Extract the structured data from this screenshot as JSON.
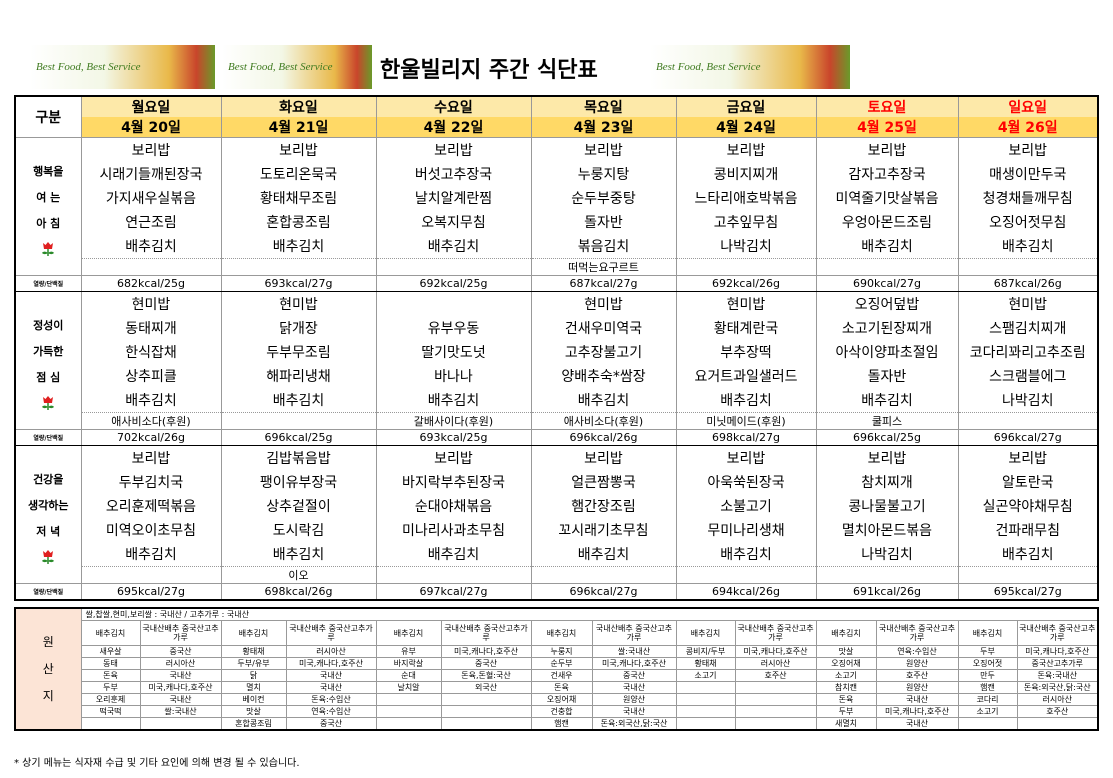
{
  "banner": "Best Food, Best Service",
  "title": "한울빌리지 주간 식단표",
  "header": {
    "label": "구분",
    "days": [
      "월요일",
      "화요일",
      "수요일",
      "목요일",
      "금요일",
      "토요일",
      "일요일"
    ],
    "dates": [
      "4월 20일",
      "4월 21일",
      "4월 22일",
      "4월 23일",
      "4월 24일",
      "4월 25일",
      "4월 26일"
    ],
    "weekend": [
      5,
      6
    ],
    "weekend_color": "#ff0000"
  },
  "meals": [
    {
      "label": [
        "행복을",
        "여 는",
        "아 침"
      ],
      "kcal_label": "열량/단백질",
      "menus": [
        [
          "보리밥",
          "시래기들깨된장국",
          "가지새우실볶음",
          "연근조림",
          "배추김치"
        ],
        [
          "보리밥",
          "도토리온묵국",
          "황태채무조림",
          "혼합콩조림",
          "배추김치"
        ],
        [
          "보리밥",
          "버섯고추장국",
          "날치알계란찜",
          "오복지무침",
          "배추김치"
        ],
        [
          "보리밥",
          "누룽지탕",
          "순두부중탕",
          "돌자반",
          "볶음김치"
        ],
        [
          "보리밥",
          "콩비지찌개",
          "느타리애호박볶음",
          "고추잎무침",
          "나박김치"
        ],
        [
          "보리밥",
          "감자고추장국",
          "미역줄기맛살볶음",
          "우엉아몬드조림",
          "배추김치"
        ],
        [
          "보리밥",
          "매생이만두국",
          "청경채들깨무침",
          "오징어젓무침",
          "배추김치"
        ]
      ],
      "extras": [
        null,
        null,
        null,
        "떠먹는요구르트",
        null,
        null,
        null
      ],
      "kcal": [
        "682kcal/25g",
        "693kcal/27g",
        "692kcal/25g",
        "687kcal/27g",
        "692kcal/26g",
        "690kcal/27g",
        "687kcal/26g"
      ]
    },
    {
      "label": [
        "정성이",
        "가득한",
        "점 심"
      ],
      "kcal_label": "열량/단백질",
      "menus": [
        [
          "현미밥",
          "동태찌개",
          "한식잡채",
          "상추피클",
          "배추김치"
        ],
        [
          "현미밥",
          "닭개장",
          "두부무조림",
          "해파리냉채",
          "배추김치"
        ],
        [
          null,
          "유부우동",
          "딸기맛도넛",
          "바나나",
          "배추김치"
        ],
        [
          "현미밥",
          "건새우미역국",
          "고추장불고기",
          "양배추숙*쌈장",
          "배추김치"
        ],
        [
          "현미밥",
          "황태계란국",
          "부추장떡",
          "요거트과일샐러드",
          "배추김치"
        ],
        [
          "오징어덮밥",
          "소고기된장찌개",
          "아삭이양파초절임",
          "돌자반",
          "배추김치"
        ],
        [
          "현미밥",
          "스팸김치찌개",
          "코다리꽈리고추조림",
          "스크램블에그",
          "나박김치"
        ]
      ],
      "extras": [
        "애사비소다(후원)",
        null,
        "갈배사이다(후원)",
        "애사비소다(후원)",
        "미닛메이드(후원)",
        "쿨피스",
        null
      ],
      "kcal": [
        "702kcal/26g",
        "696kcal/25g",
        "693kcal/25g",
        "696kcal/26g",
        "698kcal/27g",
        "696kcal/25g",
        "696kcal/27g"
      ]
    },
    {
      "label": [
        "건강을",
        "생각하는",
        "저 녁"
      ],
      "kcal_label": "열량/단백질",
      "menus": [
        [
          "보리밥",
          "두부김치국",
          "오리훈제떡볶음",
          "미역오이초무침",
          "배추김치"
        ],
        [
          "김밥볶음밥",
          "팽이유부장국",
          "상추겉절이",
          "도시락김",
          "배추김치"
        ],
        [
          "보리밥",
          "바지락부추된장국",
          "순대야채볶음",
          "미나리사과초무침",
          "배추김치"
        ],
        [
          "보리밥",
          "얼큰짬뽕국",
          "햄간장조림",
          "꼬시래기초무침",
          "배추김치"
        ],
        [
          "보리밥",
          "아욱쑥된장국",
          "소불고기",
          "무미나리생채",
          "배추김치"
        ],
        [
          "보리밥",
          "참치찌개",
          "콩나물불고기",
          "멸치아몬드볶음",
          "나박김치"
        ],
        [
          "보리밥",
          "알토란국",
          "실곤약야채무침",
          "건파래무침",
          "배추김치"
        ]
      ],
      "extras": [
        null,
        "이오",
        null,
        null,
        null,
        null,
        null
      ],
      "kcal": [
        "695kcal/27g",
        "698kcal/26g",
        "697kcal/27g",
        "696kcal/27g",
        "694kcal/26g",
        "691kcal/26g",
        "695kcal/27g"
      ]
    }
  ],
  "origin": {
    "label": [
      "원",
      "산",
      "지"
    ],
    "note": "쌀,찹쌀,현미,보리쌀 : 국내산 / 고추가루 : 국내산",
    "days": [
      [
        [
          "배추김치",
          "국내산배추 중국산고추가루"
        ],
        [
          "새우살",
          "중국산"
        ],
        [
          "동태",
          "러시아산"
        ],
        [
          "돈육",
          "국내산"
        ],
        [
          "두부",
          "미국,캐나다,호주산"
        ],
        [
          "오리훈제",
          "국내산"
        ],
        [
          "떡국떡",
          "쌀:국내산"
        ]
      ],
      [
        [
          "배추김치",
          "국내산배추 중국산고추가루"
        ],
        [
          "황태채",
          "러시아산"
        ],
        [
          "두부/유부",
          "미국,캐나다,호주산"
        ],
        [
          "닭",
          "국내산"
        ],
        [
          "멸치",
          "국내산"
        ],
        [
          "베이컨",
          "돈육:수입산"
        ],
        [
          "맛살",
          "연육:수입산"
        ],
        [
          "혼합콩조림",
          "중국산"
        ]
      ],
      [
        [
          "배추김치",
          "국내산배추 중국산고추가루"
        ],
        [
          "유부",
          "미국,캐나다,호주산"
        ],
        [
          "바지락살",
          "중국산"
        ],
        [
          "순대",
          "돈육,돈혈:국산"
        ],
        [
          "날치알",
          "외국산"
        ]
      ],
      [
        [
          "배추김치",
          "국내산배추 중국산고추가루"
        ],
        [
          "누룽지",
          "쌀:국내산"
        ],
        [
          "순두부",
          "미국,캐나다,호주산"
        ],
        [
          "건새우",
          "중국산"
        ],
        [
          "돈육",
          "국내산"
        ],
        [
          "오징어채",
          "원양산"
        ],
        [
          "건충합",
          "국내산"
        ],
        [
          "햄캔",
          "돈육:외국산,닭:국산"
        ]
      ],
      [
        [
          "배추김치",
          "국내산배추 중국산고추가루"
        ],
        [
          "콩비지/두부",
          "미국,캐나다,호주산"
        ],
        [
          "황태채",
          "러시아산"
        ],
        [
          "소고기",
          "호주산"
        ]
      ],
      [
        [
          "배추김치",
          "국내산배추 중국산고추가루"
        ],
        [
          "맛살",
          "연육:수입산"
        ],
        [
          "오징어채",
          "원양산"
        ],
        [
          "소고기",
          "호주산"
        ],
        [
          "참치캔",
          "원양산"
        ],
        [
          "돈육",
          "국내산"
        ],
        [
          "두부",
          "미국,캐나다,호주산"
        ],
        [
          "새멸치",
          "국내산"
        ]
      ],
      [
        [
          "배추김치",
          "국내산배추 중국산고추가루"
        ],
        [
          "두부",
          "미국,캐나다,호주산"
        ],
        [
          "오징어젓",
          "중국산고추가루"
        ],
        [
          "만두",
          "돈육:국내산"
        ],
        [
          "햄캔",
          "돈육:외국산,닭:국산"
        ],
        [
          "코다리",
          "러시아산"
        ],
        [
          "소고기",
          "호주산"
        ]
      ]
    ]
  },
  "footer": "* 상기 메뉴는 식자재 수급 및 기타 요인에 의해 변경 될 수 있습니다."
}
